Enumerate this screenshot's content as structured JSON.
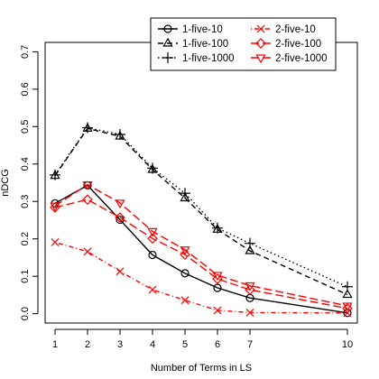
{
  "chart_data": {
    "type": "line",
    "xlabel": "Number of Terms in LS",
    "ylabel": "nDCG",
    "x": [
      1,
      2,
      3,
      4,
      5,
      6,
      7,
      10
    ],
    "x_ticks": [
      1,
      2,
      3,
      4,
      5,
      6,
      7,
      10
    ],
    "y_ticks": [
      0.0,
      0.1,
      0.2,
      0.3,
      0.4,
      0.5,
      0.6,
      0.7
    ],
    "y_tick_labels": [
      "0.0",
      "0.1",
      "0.2",
      "0.3",
      "0.4",
      "0.5",
      "0.6",
      "0.7"
    ],
    "ylim": [
      0,
      0.7
    ],
    "grid": false,
    "legend_position": "top-right",
    "series": [
      {
        "name": "1-five-10",
        "color": "#000000",
        "line_style": "solid",
        "marker": "circle",
        "values": [
          0.295,
          0.343,
          0.251,
          0.157,
          0.108,
          0.069,
          0.042,
          0.002
        ]
      },
      {
        "name": "1-five-100",
        "color": "#000000",
        "line_style": "dashed",
        "marker": "triangle-up",
        "values": [
          0.369,
          0.495,
          0.474,
          0.385,
          0.309,
          0.225,
          0.168,
          0.051
        ]
      },
      {
        "name": "1-five-1000",
        "color": "#000000",
        "line_style": "dotted",
        "marker": "plus",
        "values": [
          0.371,
          0.497,
          0.479,
          0.389,
          0.322,
          0.229,
          0.188,
          0.072
        ]
      },
      {
        "name": "2-five-10",
        "color": "#ff0000",
        "line_style": "dashdot",
        "marker": "x",
        "values": [
          0.191,
          0.166,
          0.113,
          0.064,
          0.036,
          0.009,
          0.003,
          0.002
        ]
      },
      {
        "name": "2-five-100",
        "color": "#ff0000",
        "line_style": "longdash",
        "marker": "diamond",
        "values": [
          0.284,
          0.305,
          0.257,
          0.201,
          0.158,
          0.093,
          0.064,
          0.014
        ]
      },
      {
        "name": "2-five-1000",
        "color": "#ff0000",
        "line_style": "longdash",
        "marker": "triangle-down",
        "values": [
          0.288,
          0.345,
          0.296,
          0.22,
          0.171,
          0.103,
          0.075,
          0.021
        ]
      }
    ]
  }
}
